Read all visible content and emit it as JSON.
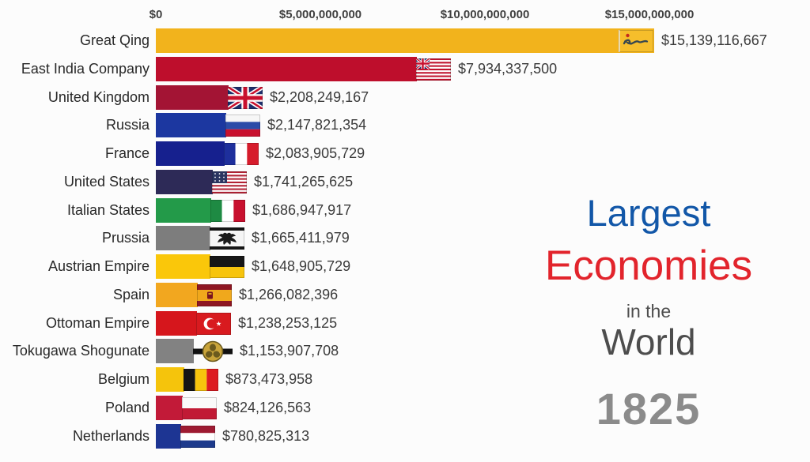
{
  "page": {
    "background": "#fcfcfc"
  },
  "axis": {
    "color": "#414141",
    "ticks": [
      {
        "label": "$0",
        "value": 0
      },
      {
        "label": "$5,000,000,000",
        "value": 5000000000
      },
      {
        "label": "$10,000,000,000",
        "value": 10000000000
      },
      {
        "label": "$15,000,000,000",
        "value": 15000000000
      }
    ]
  },
  "title": {
    "line1": "Largest",
    "line2": "Economies",
    "line3": "in the",
    "line4": "World",
    "year": "1825",
    "line1_color": "#1257a8",
    "line2_color": "#e2242c",
    "line3_color": "#4d4d4d",
    "line4_color": "#4d4d4d",
    "year_color": "#8b8b8b"
  },
  "chart_data": {
    "type": "bar",
    "orientation": "horizontal",
    "title": "Largest Economies in the World",
    "year": "1825",
    "unit": "USD ($)",
    "xlim": [
      0,
      15500000000
    ],
    "x_tick_labels": [
      "$0",
      "$5,000,000,000",
      "$10,000,000,000",
      "$15,000,000,000"
    ],
    "grid": false,
    "legend": false,
    "categories": [
      "Great Qing",
      "East India Company",
      "United Kingdom",
      "Russia",
      "France",
      "United States",
      "Italian States",
      "Prussia",
      "Austrian Empire",
      "Spain",
      "Ottoman Empire",
      "Tokugawa Shogunate",
      "Belgium",
      "Poland",
      "Netherlands"
    ],
    "values": [
      15139116667,
      7934337500,
      2208249167,
      2147821354,
      2083905729,
      1741265625,
      1686947917,
      1665411979,
      1648905729,
      1266082396,
      1238253125,
      1153907708,
      873473958,
      824126563,
      780825313
    ],
    "value_labels": [
      "$15,139,116,667",
      "$7,934,337,500",
      "$2,208,249,167",
      "$2,147,821,354",
      "$2,083,905,729",
      "$1,741,265,625",
      "$1,686,947,917",
      "$1,665,411,979",
      "$1,648,905,729",
      "$1,266,082,396",
      "$1,238,253,125",
      "$1,153,907,708",
      "$873,473,958",
      "$824,126,563",
      "$780,825,313"
    ],
    "bar_colors": [
      "#f2b31c",
      "#be0e2c",
      "#a31434",
      "#1c37a0",
      "#16208e",
      "#2d2a57",
      "#239a49",
      "#7d7d7d",
      "#fac70a",
      "#f2a71f",
      "#d6161c",
      "#828282",
      "#f5c40c",
      "#c21a38",
      "#1d3593"
    ],
    "flags": [
      "qing-dragon-flag",
      "east-india-company-flag",
      "union-jack-flag",
      "russia-flag",
      "france-flag",
      "united-states-flag",
      "italian-states-flag",
      "prussia-eagle-flag",
      "austrian-empire-flag",
      "spain-flag",
      "ottoman-empire-flag",
      "tokugawa-crest",
      "belgium-flag",
      "poland-flag",
      "netherlands-flag"
    ]
  }
}
